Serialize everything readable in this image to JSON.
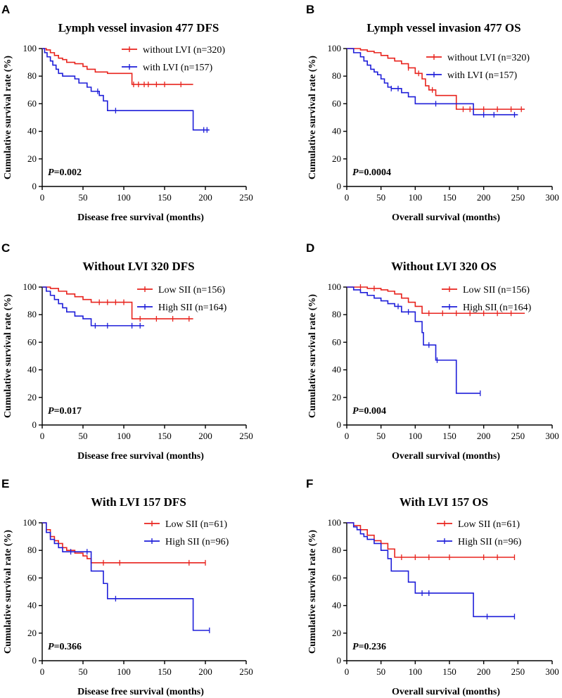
{
  "chart_data": [
    {
      "panel": "A",
      "type": "line",
      "title": "Lymph vessel invasion 477 DFS",
      "xlabel": "Disease free survival (months)",
      "ylabel": "Cumulative survival rate (%)",
      "xlim": [
        0,
        250
      ],
      "ylim": [
        0,
        100
      ],
      "xticks": [
        0,
        50,
        100,
        150,
        200,
        250
      ],
      "yticks": [
        0,
        20,
        40,
        60,
        80,
        100
      ],
      "p_label": "P",
      "p_value": "=0.002",
      "legend_position": "top-right",
      "series": [
        {
          "name": "without LVI (n=320)",
          "color": "#e8231d",
          "x": [
            0,
            5,
            10,
            15,
            20,
            25,
            30,
            40,
            50,
            55,
            65,
            80,
            110,
            185
          ],
          "y": [
            100,
            99,
            97,
            95,
            93,
            92,
            90,
            89,
            87,
            85,
            83,
            82,
            74,
            74
          ],
          "censor_x": [
            112,
            118,
            125,
            130,
            140,
            150,
            170
          ]
        },
        {
          "name": "with LVI (n=157)",
          "color": "#1e1ed9",
          "x": [
            0,
            3,
            6,
            10,
            13,
            17,
            20,
            25,
            30,
            40,
            45,
            55,
            60,
            70,
            75,
            80,
            185,
            205
          ],
          "y": [
            100,
            97,
            94,
            91,
            88,
            85,
            82,
            80,
            80,
            78,
            75,
            72,
            69,
            66,
            62,
            55,
            41,
            41
          ],
          "censor_x": [
            68,
            90,
            198,
            202
          ]
        }
      ]
    },
    {
      "panel": "B",
      "type": "line",
      "title": "Lymph vessel invasion 477 OS",
      "xlabel": "Overall survival (months)",
      "ylabel": "Cumulative survival rate (%)",
      "xlim": [
        0,
        300
      ],
      "ylim": [
        0,
        100
      ],
      "xticks": [
        0,
        50,
        100,
        150,
        200,
        250,
        300
      ],
      "yticks": [
        0,
        20,
        40,
        60,
        80,
        100
      ],
      "p_label": "P",
      "p_value": "=0.0004",
      "legend_position": "top-right",
      "series": [
        {
          "name": "without LVI (n=320)",
          "color": "#e8231d",
          "x": [
            0,
            20,
            30,
            40,
            50,
            60,
            70,
            80,
            90,
            100,
            110,
            115,
            120,
            130,
            160,
            260
          ],
          "y": [
            100,
            99,
            98,
            97,
            95,
            93,
            91,
            89,
            86,
            82,
            78,
            73,
            70,
            66,
            56,
            56
          ],
          "censor_x": [
            90,
            105,
            125,
            170,
            180,
            200,
            220,
            240,
            255
          ]
        },
        {
          "name": "with LVI (n=157)",
          "color": "#1e1ed9",
          "x": [
            0,
            10,
            20,
            25,
            30,
            35,
            40,
            45,
            50,
            55,
            60,
            65,
            70,
            80,
            90,
            100,
            110,
            185,
            250
          ],
          "y": [
            100,
            97,
            94,
            91,
            88,
            85,
            83,
            81,
            78,
            75,
            72,
            71,
            71,
            68,
            65,
            60,
            60,
            52,
            52
          ],
          "censor_x": [
            65,
            75,
            130,
            200,
            215,
            245
          ]
        }
      ]
    },
    {
      "panel": "C",
      "type": "line",
      "title": "Without LVI 320 DFS",
      "xlabel": "Disease free survival (months)",
      "ylabel": "Cumulative survival rate (%)",
      "xlim": [
        0,
        250
      ],
      "ylim": [
        0,
        100
      ],
      "xticks": [
        0,
        50,
        100,
        150,
        200,
        250
      ],
      "yticks": [
        0,
        20,
        40,
        60,
        80,
        100
      ],
      "p_label": "P",
      "p_value": "=0.017",
      "legend_position": "top-right",
      "series": [
        {
          "name": "Low SII (n=156)",
          "color": "#e8231d",
          "x": [
            0,
            10,
            20,
            30,
            40,
            50,
            60,
            110,
            185
          ],
          "y": [
            100,
            99,
            97,
            95,
            93,
            91,
            89,
            77,
            77
          ],
          "censor_x": [
            70,
            80,
            90,
            100,
            120,
            140,
            160,
            180
          ]
        },
        {
          "name": "High SII (n=164)",
          "color": "#1e1ed9",
          "x": [
            0,
            5,
            10,
            15,
            20,
            25,
            30,
            40,
            50,
            60,
            125
          ],
          "y": [
            100,
            97,
            94,
            91,
            88,
            85,
            82,
            79,
            77,
            72,
            72
          ],
          "censor_x": [
            65,
            80,
            110,
            120
          ]
        }
      ]
    },
    {
      "panel": "D",
      "type": "line",
      "title": "Without LVI 320 OS",
      "xlabel": "Overall survival (months)",
      "ylabel": "Cumulative survival rate (%)",
      "xlim": [
        0,
        300
      ],
      "ylim": [
        0,
        100
      ],
      "xticks": [
        0,
        50,
        100,
        150,
        200,
        250,
        300
      ],
      "yticks": [
        0,
        20,
        40,
        60,
        80,
        100
      ],
      "p_label": "P",
      "p_value": "=0.004",
      "legend_position": "top-right",
      "series": [
        {
          "name": "Low SII (n=156)",
          "color": "#e8231d",
          "x": [
            0,
            30,
            50,
            60,
            70,
            80,
            90,
            100,
            110,
            260
          ],
          "y": [
            100,
            99,
            98,
            97,
            95,
            92,
            89,
            86,
            81,
            81
          ],
          "censor_x": [
            20,
            40,
            120,
            140,
            160,
            180,
            200,
            220,
            240
          ]
        },
        {
          "name": "High SII (n=164)",
          "color": "#1e1ed9",
          "x": [
            0,
            10,
            20,
            30,
            40,
            50,
            60,
            70,
            80,
            100,
            110,
            112,
            130,
            160,
            195
          ],
          "y": [
            100,
            98,
            96,
            94,
            92,
            90,
            88,
            86,
            82,
            75,
            67,
            58,
            47,
            23,
            23
          ],
          "censor_x": [
            75,
            90,
            120,
            132,
            195
          ]
        }
      ]
    },
    {
      "panel": "E",
      "type": "line",
      "title": "With LVI 157 DFS",
      "xlabel": "Disease free survival (months)",
      "ylabel": "Cumulative survival rate (%)",
      "xlim": [
        0,
        250
      ],
      "ylim": [
        0,
        100
      ],
      "xticks": [
        0,
        50,
        100,
        150,
        200,
        250
      ],
      "yticks": [
        0,
        20,
        40,
        60,
        80,
        100
      ],
      "p_label": "P",
      "p_value": "=0.366",
      "legend_position": "top-right",
      "series": [
        {
          "name": "Low SII (n=61)",
          "color": "#e8231d",
          "x": [
            0,
            5,
            10,
            15,
            20,
            25,
            30,
            40,
            50,
            55,
            60,
            200
          ],
          "y": [
            100,
            95,
            90,
            87,
            85,
            82,
            80,
            78,
            76,
            74,
            71,
            71
          ],
          "censor_x": [
            75,
            95,
            180,
            200
          ]
        },
        {
          "name": "High SII (n=96)",
          "color": "#1e1ed9",
          "x": [
            0,
            5,
            10,
            15,
            20,
            25,
            50,
            60,
            75,
            80,
            185,
            205
          ],
          "y": [
            100,
            93,
            88,
            85,
            82,
            79,
            79,
            65,
            56,
            45,
            22,
            22
          ],
          "censor_x": [
            35,
            55,
            90,
            205
          ]
        }
      ]
    },
    {
      "panel": "F",
      "type": "line",
      "title": "With LVI 157 OS",
      "xlabel": "Overall survival (months)",
      "ylabel": "Cumulative survival rate (%)",
      "xlim": [
        0,
        300
      ],
      "ylim": [
        0,
        100
      ],
      "xticks": [
        0,
        50,
        100,
        150,
        200,
        250,
        300
      ],
      "yticks": [
        0,
        20,
        40,
        60,
        80,
        100
      ],
      "p_label": "P",
      "p_value": "=0.236",
      "legend_position": "top-right",
      "series": [
        {
          "name": "Low SII (n=61)",
          "color": "#e8231d",
          "x": [
            0,
            10,
            20,
            30,
            40,
            50,
            60,
            70,
            245
          ],
          "y": [
            100,
            98,
            95,
            91,
            87,
            85,
            81,
            75,
            75
          ],
          "censor_x": [
            80,
            100,
            120,
            150,
            200,
            220,
            245
          ]
        },
        {
          "name": "High SII (n=96)",
          "color": "#1e1ed9",
          "x": [
            0,
            10,
            15,
            20,
            25,
            30,
            40,
            50,
            60,
            65,
            80,
            90,
            100,
            185,
            245
          ],
          "y": [
            100,
            97,
            95,
            92,
            90,
            88,
            85,
            80,
            74,
            65,
            65,
            57,
            49,
            32,
            32
          ],
          "censor_x": [
            110,
            120,
            205,
            245
          ]
        }
      ]
    }
  ]
}
